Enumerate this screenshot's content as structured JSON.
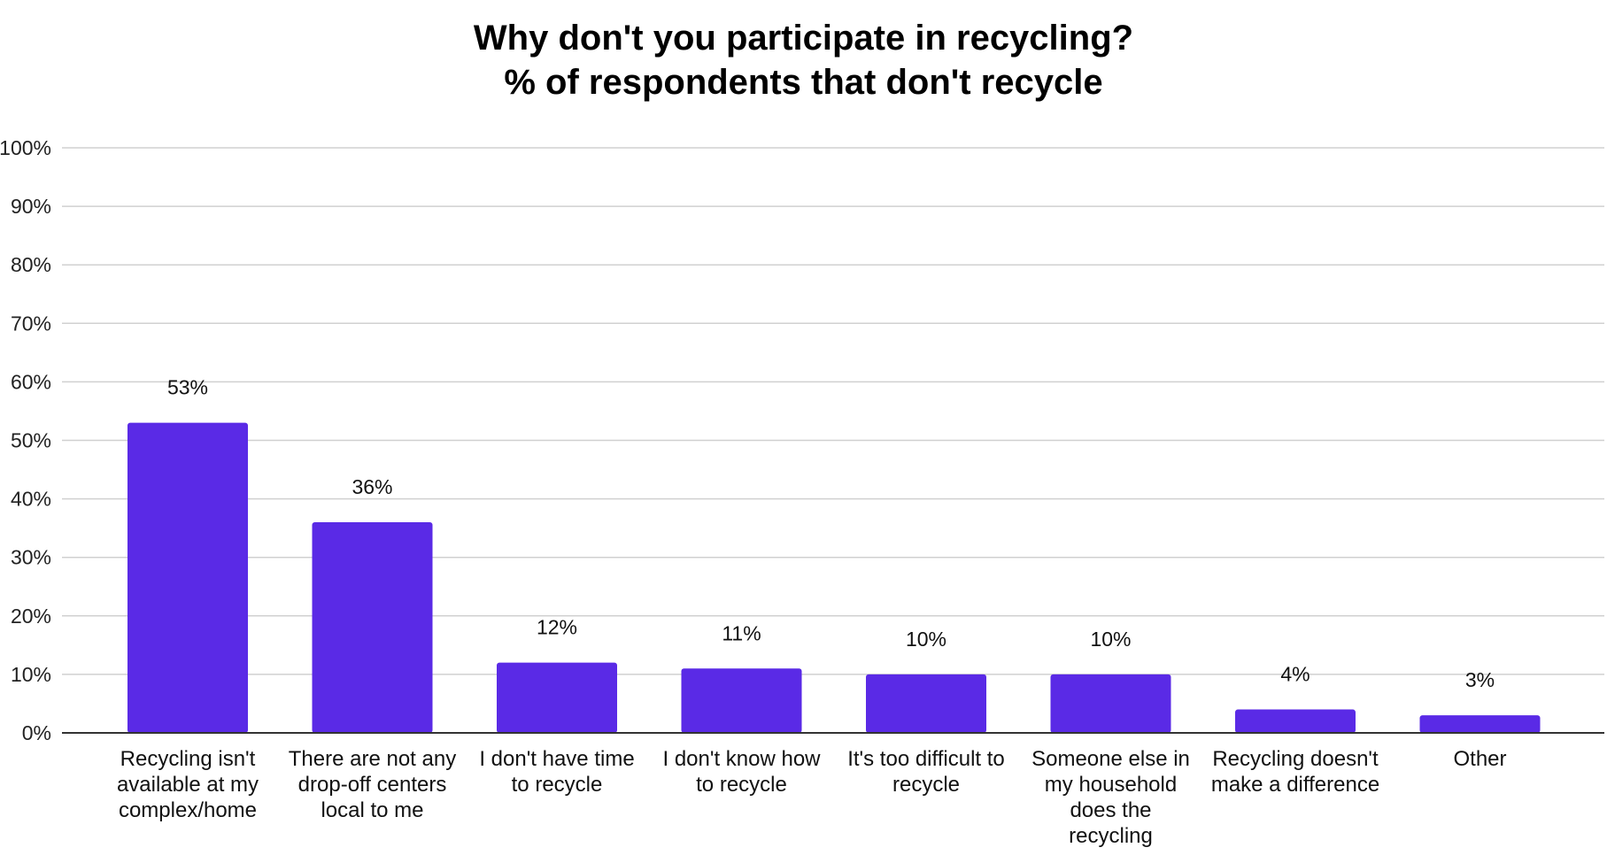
{
  "chart_data": {
    "type": "bar",
    "title": "Why don't you participate in recycling?",
    "subtitle": "% of respondents that don't recycle",
    "categories": [
      [
        "Recycling isn't",
        "available at my",
        "complex/home"
      ],
      [
        "There are not any",
        "drop-off centers",
        "local to me"
      ],
      [
        "I don't have time",
        "to recycle"
      ],
      [
        "I don't know how",
        "to recycle"
      ],
      [
        "It's too difficult to",
        "recycle"
      ],
      [
        "Someone else in",
        "my household",
        "does the",
        "recycling"
      ],
      [
        "Recycling doesn't",
        "make a difference"
      ],
      [
        "Other"
      ]
    ],
    "values": [
      53,
      36,
      12,
      11,
      10,
      10,
      4,
      3
    ],
    "data_labels": [
      "53%",
      "36%",
      "12%",
      "11%",
      "10%",
      "10%",
      "4%",
      "3%"
    ],
    "ylim": [
      0,
      100
    ],
    "yticks": [
      0,
      10,
      20,
      30,
      40,
      50,
      60,
      70,
      80,
      90,
      100
    ],
    "ytick_labels": [
      "0%",
      "10%",
      "20%",
      "30%",
      "40%",
      "50%",
      "60%",
      "70%",
      "80%",
      "90%",
      "100%"
    ],
    "grid": true,
    "bar_color": "#5a2ae6",
    "grid_color": "#d0d0d0",
    "axis_color": "#333333"
  }
}
